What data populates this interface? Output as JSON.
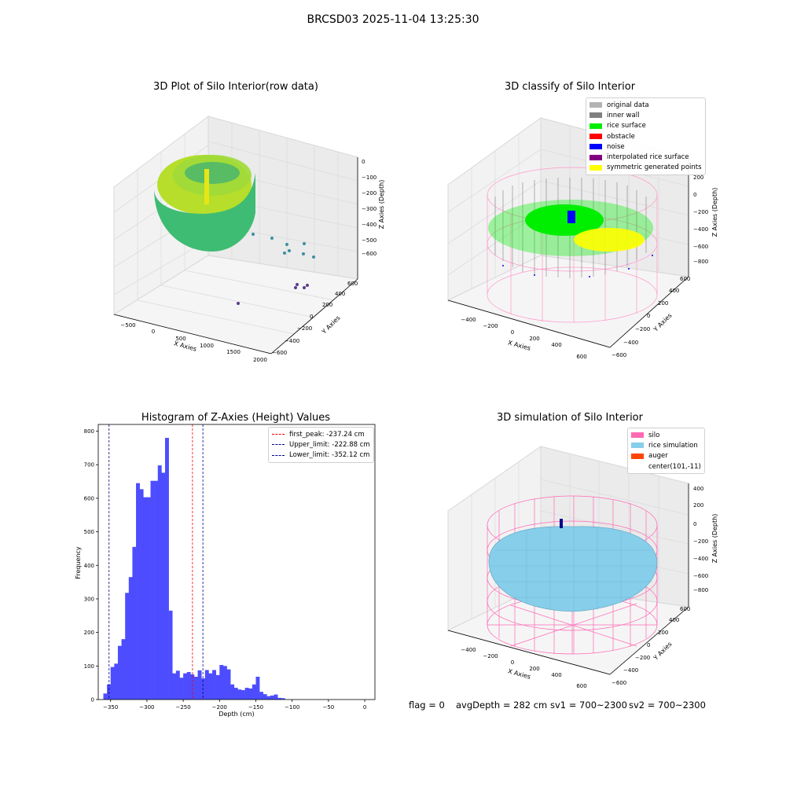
{
  "figure_title": "BRCSD03 2025-11-04 13:25:30",
  "status": {
    "flag": "flag = 0",
    "avg_depth": "avgDepth = 282 cm",
    "sv1": "sv1 = 700~2300",
    "sv2": "sv2 = 700~2300"
  },
  "colors": {
    "hist_bar": "#4d4dff",
    "first_peak": "#ff0000",
    "limits": "#00008b",
    "original_data": "#b3b3b3",
    "inner_wall": "#808080",
    "rice_surface": "#00ee00",
    "obstacle": "#ff0000",
    "noise": "#0000ff",
    "interpolated": "#800080",
    "symmetric": "#ffff00",
    "silo": "#ff69b4",
    "rice_sim": "#87ceeb",
    "auger": "#ff4500"
  },
  "chart_data": [
    {
      "type": "scatter",
      "projection": "3d",
      "title": "3D Plot of Silo Interior(row data)",
      "xlabel": "X Axies",
      "ylabel": "Y Axies",
      "zlabel": "Z Axies (Depth)",
      "xticks": [
        "−500",
        "0",
        "500",
        "1000",
        "1500",
        "2000"
      ],
      "yticks": [
        "−600",
        "−400",
        "−200",
        "0",
        "200",
        "400",
        "600"
      ],
      "zticks": [
        "0",
        "−100",
        "−200",
        "−300",
        "−400",
        "−500",
        "−600"
      ],
      "grid": true
    },
    {
      "type": "scatter",
      "projection": "3d",
      "title": "3D classify of Silo Interior",
      "xlabel": "X Axies",
      "ylabel": "Y Axies",
      "zlabel": "Z Axies (Depth)",
      "xticks": [
        "−400",
        "−200",
        "0",
        "200",
        "400",
        "600"
      ],
      "yticks": [
        "−600",
        "−400",
        "−200",
        "0",
        "200",
        "400",
        "600"
      ],
      "zticks": [
        "200",
        "0",
        "−200",
        "−400",
        "−600",
        "−800"
      ],
      "legend_position": "top-right",
      "legend": [
        "original data",
        "inner wall",
        "rice surface",
        "obstacle",
        "noise",
        "interpolated rice surface",
        "symmetric generated points"
      ],
      "grid": true
    },
    {
      "type": "bar",
      "title": "Histogram of Z-Axies (Height) Values",
      "xlabel": "Depth (cm)",
      "ylabel": "Frequency",
      "xlim": [
        -367,
        14
      ],
      "ylim": [
        0,
        820
      ],
      "xticks": [
        -350,
        -300,
        -250,
        -200,
        -150,
        -100,
        -50,
        0
      ],
      "xtick_labels": [
        "−350",
        "−300",
        "−250",
        "−200",
        "−150",
        "−100",
        "−50",
        "0"
      ],
      "yticks": [
        0,
        100,
        200,
        300,
        400,
        500,
        600,
        700,
        800
      ],
      "bin_start": -360,
      "bin_width": 5,
      "values": [
        18,
        45,
        97,
        107,
        160,
        180,
        318,
        365,
        455,
        645,
        627,
        603,
        603,
        652,
        652,
        698,
        676,
        780,
        265,
        78,
        86,
        65,
        78,
        82,
        75,
        68,
        87,
        63,
        88,
        78,
        88,
        73,
        103,
        100,
        90,
        45,
        35,
        30,
        28,
        35,
        33,
        45,
        68,
        23,
        16,
        10,
        12,
        15,
        5,
        4
      ],
      "vlines": [
        {
          "label": "first_peak: -237.24 cm",
          "x": -237.24,
          "color": "#ff0000"
        },
        {
          "label": "Upper_limit: -222.88 cm",
          "x": -222.88,
          "color": "#00008b"
        },
        {
          "label": "Lower_limit: -352.12 cm",
          "x": -352.12,
          "color": "#00008b"
        }
      ],
      "legend_position": "top-right",
      "grid": false
    },
    {
      "type": "surface",
      "projection": "3d",
      "title": "3D simulation of Silo Interior",
      "xlabel": "X Axies",
      "ylabel": "Y Axies",
      "zlabel": "Z Axies (Depth)",
      "xticks": [
        "−400",
        "−200",
        "0",
        "200",
        "400",
        "600"
      ],
      "yticks": [
        "−600",
        "−400",
        "−200",
        "0",
        "200",
        "400",
        "600"
      ],
      "zticks": [
        "400",
        "200",
        "0",
        "−200",
        "−400",
        "−600",
        "−800"
      ],
      "legend_position": "top-right",
      "legend": [
        "silo",
        "rice simulation",
        "auger",
        "center(101,-11)"
      ],
      "grid": true
    }
  ]
}
